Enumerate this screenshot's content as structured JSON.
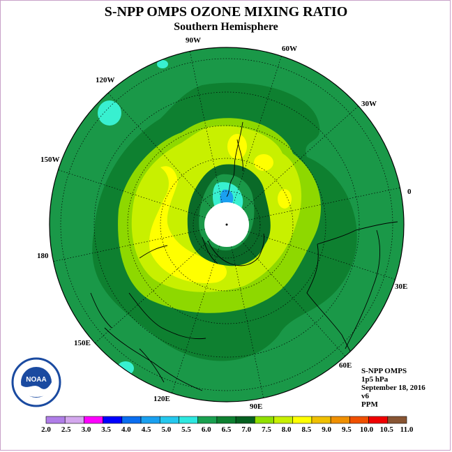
{
  "title": "S-NPP OMPS OZONE MIXING RATIO",
  "subtitle": "Southern Hemisphere",
  "longitude_labels": [
    {
      "id": "90W",
      "text": "90W"
    },
    {
      "id": "60W",
      "text": "60W"
    },
    {
      "id": "30W",
      "text": "30W"
    },
    {
      "id": "120W",
      "text": "120W"
    },
    {
      "id": "150W",
      "text": "150W"
    },
    {
      "id": "0",
      "text": "0"
    },
    {
      "id": "180",
      "text": "180"
    },
    {
      "id": "30E",
      "text": "30E"
    },
    {
      "id": "150E",
      "text": "150E"
    },
    {
      "id": "60E",
      "text": "60E"
    },
    {
      "id": "120E",
      "text": "120E"
    },
    {
      "id": "90E",
      "text": "90E"
    }
  ],
  "info": {
    "instrument": "S-NPP OMPS",
    "level": "1p5 hPa",
    "date": "September 18, 2016",
    "version": "v6",
    "units": "PPM"
  },
  "logo": {
    "text": "NOAA"
  },
  "colorbar": {
    "ticks": [
      "2.0",
      "2.5",
      "3.0",
      "3.5",
      "4.0",
      "4.5",
      "5.0",
      "5.5",
      "6.0",
      "6.5",
      "7.0",
      "7.5",
      "8.0",
      "8.5",
      "9.0",
      "9.5",
      "10.0",
      "10.5",
      "11.0"
    ],
    "colors": [
      "#b07ee8",
      "#d4a8ee",
      "#ff00ff",
      "#0000ff",
      "#0a6ef0",
      "#1aa0f0",
      "#25c8ee",
      "#2ee8e0",
      "#1aa050",
      "#0e8030",
      "#056020",
      "#90e000",
      "#c8f000",
      "#ffff00",
      "#f0c000",
      "#f09000",
      "#f05000",
      "#f00000",
      "#885533"
    ]
  },
  "colors": {
    "outer_green": "#1a9848",
    "dark_green": "#0a6a28",
    "light_green": "#8ed800",
    "yellow_green": "#c8f000",
    "yellow": "#ffff00",
    "cyan": "#38f0d0",
    "polar_hole": "#ffffff"
  }
}
